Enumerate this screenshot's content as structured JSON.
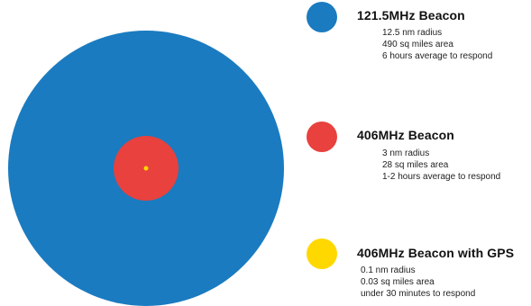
{
  "colors": {
    "beacon_121": "#1a7bc0",
    "beacon_406": "#e8413e",
    "beacon_gps": "#ffd800"
  },
  "legend": [
    {
      "title": "121.5MHz Beacon",
      "radius": "12.5 nm radius",
      "area": "490 sq miles area",
      "response": "6 hours average to respond"
    },
    {
      "title": "406MHz Beacon",
      "radius": "3 nm radius",
      "area": "28 sq miles area",
      "response": "1-2 hours average to respond"
    },
    {
      "title": "406MHz Beacon with GPS",
      "radius": "0.1 nm radius",
      "area": "0.03 sq miles area",
      "response": "under 30 minutes to respond"
    }
  ]
}
